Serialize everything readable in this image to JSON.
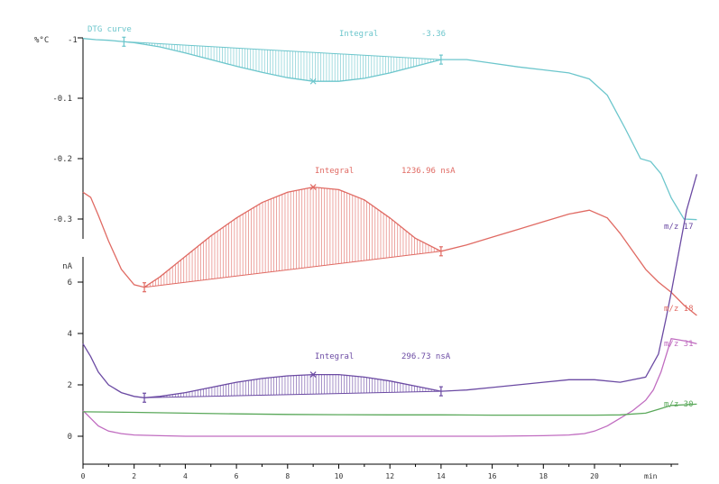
{
  "chart_data": {
    "type": "line",
    "dtg": {
      "title": "DTG curve",
      "unit_label": "%°C",
      "color": "#6cc6cc",
      "yticks": [
        "-0.1",
        "-0.2",
        "-0.3"
      ],
      "ytick_values": [
        -0.1,
        -0.2,
        -0.3
      ],
      "top_label": "-1",
      "integral_label": "Integral",
      "integral_value": "-3.36",
      "x": [
        0,
        0.5,
        1,
        1.5,
        2,
        3,
        4,
        5,
        6,
        7,
        8,
        9,
        10,
        11,
        12,
        13,
        14,
        15,
        16,
        17,
        18,
        19,
        19.8,
        20.5,
        21.2,
        21.8,
        22.2,
        22.6,
        23,
        23.5,
        24
      ],
      "y": [
        -0.001,
        -0.003,
        -0.004,
        -0.006,
        -0.008,
        -0.015,
        -0.025,
        -0.036,
        -0.047,
        -0.057,
        -0.066,
        -0.072,
        -0.072,
        -0.067,
        -0.058,
        -0.047,
        -0.036,
        -0.036,
        -0.042,
        -0.048,
        -0.053,
        -0.058,
        -0.068,
        -0.095,
        -0.15,
        -0.2,
        -0.205,
        -0.225,
        -0.265,
        -0.3,
        -0.301
      ],
      "integral": {
        "x_start": 1.6,
        "x_end": 14.0,
        "marker_x": 9.0
      }
    },
    "ion": {
      "unit": "nA",
      "yticks": [
        "0",
        "2",
        "4",
        "6"
      ],
      "ytick_values": [
        0,
        2,
        4,
        6
      ],
      "series": [
        {
          "name": "m/z 18",
          "color": "#e06a63",
          "integral_label": "Integral",
          "integral_value": "1236.96 nsA",
          "x": [
            0,
            0.3,
            0.6,
            1,
            1.5,
            2,
            2.4,
            3,
            4,
            5,
            6,
            7,
            8,
            9,
            10,
            11,
            12,
            13,
            14,
            15,
            16,
            17,
            18,
            19,
            19.8,
            20.5,
            21,
            21.5,
            22,
            22.5,
            23,
            23.5,
            24
          ],
          "y": [
            9.5,
            9.3,
            8.6,
            7.6,
            6.5,
            5.9,
            5.8,
            6.2,
            7.0,
            7.8,
            8.5,
            9.1,
            9.5,
            9.7,
            9.6,
            9.2,
            8.5,
            7.7,
            7.2,
            7.45,
            7.75,
            8.05,
            8.35,
            8.65,
            8.8,
            8.5,
            7.9,
            7.2,
            6.5,
            6.0,
            5.6,
            5.1,
            4.7
          ],
          "integral": {
            "x_start": 2.4,
            "x_end": 14.0,
            "y_start": 5.8,
            "y_end": 7.2,
            "marker_x": 9.0
          }
        },
        {
          "name": "m/z 17",
          "color": "#6b4aa3",
          "integral_label": "Integral",
          "integral_value": "296.73 nsA",
          "x": [
            0,
            0.3,
            0.6,
            1,
            1.5,
            2,
            2.4,
            3,
            4,
            5,
            6,
            7,
            8,
            9,
            10,
            11,
            12,
            13,
            14,
            15,
            16,
            17,
            18,
            19,
            20,
            21,
            22,
            22.5,
            22.8,
            23,
            23.3,
            23.6,
            24
          ],
          "y": [
            3.6,
            3.1,
            2.5,
            2.0,
            1.7,
            1.55,
            1.5,
            1.55,
            1.7,
            1.9,
            2.1,
            2.25,
            2.35,
            2.4,
            2.4,
            2.3,
            2.15,
            1.95,
            1.75,
            1.8,
            1.9,
            2.0,
            2.1,
            2.2,
            2.2,
            2.1,
            2.3,
            3.2,
            4.6,
            5.6,
            7.2,
            8.8,
            10.2
          ],
          "integral": {
            "x_start": 2.4,
            "x_end": 14.0,
            "y_start": 1.5,
            "y_end": 1.75,
            "marker_x": 9.0
          }
        },
        {
          "name": "m/z 31",
          "color": "#c06cc0",
          "x": [
            0,
            0.3,
            0.6,
            1,
            1.5,
            2,
            3,
            4,
            6,
            8,
            10,
            12,
            14,
            16,
            18,
            19,
            19.6,
            20,
            20.5,
            21,
            21.5,
            22,
            22.3,
            22.6,
            23,
            23.3,
            23.6,
            24
          ],
          "y": [
            1.0,
            0.7,
            0.4,
            0.2,
            0.1,
            0.05,
            0.02,
            0.0,
            0.0,
            0.0,
            0.0,
            0.0,
            0.0,
            0.0,
            0.02,
            0.05,
            0.1,
            0.2,
            0.4,
            0.7,
            1.0,
            1.4,
            1.8,
            2.5,
            3.8,
            3.75,
            3.7,
            3.6
          ]
        },
        {
          "name": "m/z 30",
          "color": "#5aa85a",
          "x": [
            0,
            2,
            4,
            6,
            8,
            10,
            12,
            14,
            16,
            18,
            20,
            21,
            22,
            22.5,
            23,
            24
          ],
          "y": [
            0.95,
            0.93,
            0.9,
            0.87,
            0.85,
            0.84,
            0.83,
            0.83,
            0.82,
            0.82,
            0.82,
            0.83,
            0.9,
            1.05,
            1.2,
            1.25
          ]
        }
      ]
    },
    "x_axis": {
      "ticks": [
        "0",
        "2",
        "4",
        "6",
        "8",
        "10",
        "12",
        "14",
        "16",
        "18",
        "20"
      ],
      "tick_values": [
        0,
        2,
        4,
        6,
        8,
        10,
        12,
        14,
        16,
        18,
        20
      ],
      "unit": "min",
      "xlim": [
        0,
        24
      ]
    },
    "grid": false
  }
}
